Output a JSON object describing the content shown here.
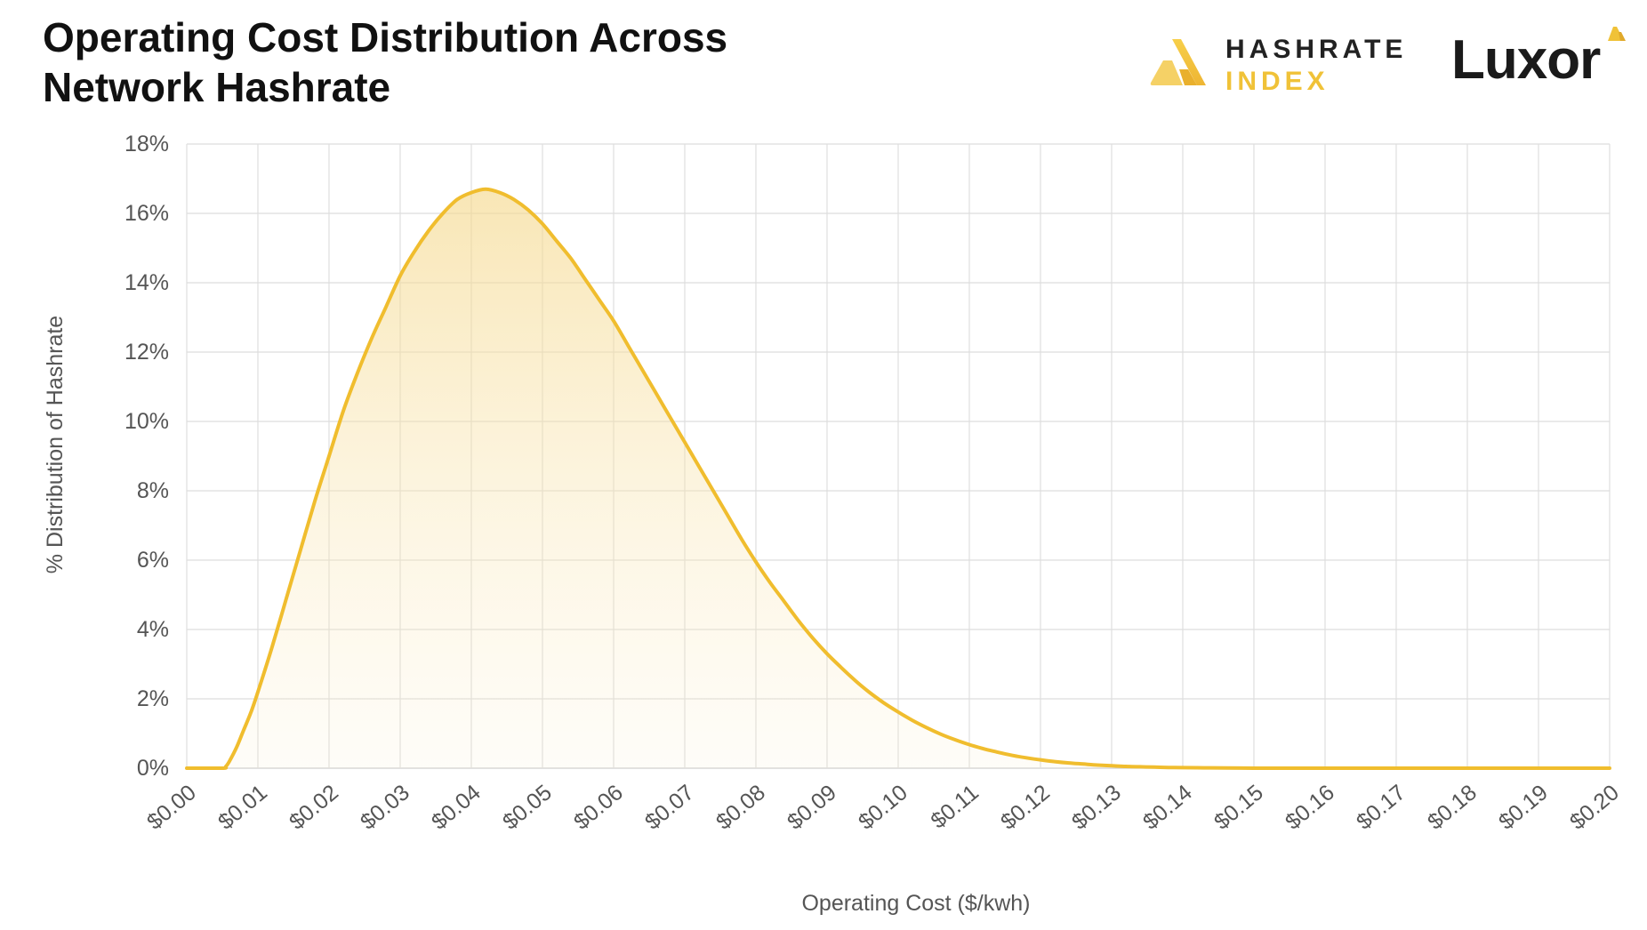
{
  "header": {
    "title_line1": "Operating Cost Distribution Across",
    "title_line2": "Network Hashrate"
  },
  "brands": {
    "hashrate_index_line1": "HASHRATE",
    "hashrate_index_line2": "INDEX",
    "luxor": "Luxor"
  },
  "colors": {
    "line": "#f0bd2e",
    "fill_top": "#f5d98e",
    "grid": "#dedede",
    "brand_gold": "#f0c238"
  },
  "chart_data": {
    "type": "area",
    "title": "Operating Cost Distribution Across Network Hashrate",
    "xlabel": "Operating Cost ($/kwh)",
    "ylabel": "% Distribution of Hashrate",
    "xlim": [
      0,
      0.2
    ],
    "ylim": [
      0,
      18
    ],
    "grid": true,
    "x_ticks": [
      0,
      0.01,
      0.02,
      0.03,
      0.04,
      0.05,
      0.06,
      0.07,
      0.08,
      0.09,
      0.1,
      0.11,
      0.12,
      0.13,
      0.14,
      0.15,
      0.16,
      0.17,
      0.18,
      0.19,
      0.2
    ],
    "x_tick_labels": [
      "$0.00",
      "$0.01",
      "$0.02",
      "$0.03",
      "$0.04",
      "$0.05",
      "$0.06",
      "$0.07",
      "$0.08",
      "$0.09",
      "$0.10",
      "$0.11",
      "$0.12",
      "$0.13",
      "$0.14",
      "$0.15",
      "$0.16",
      "$0.17",
      "$0.18",
      "$0.19",
      "$0.20"
    ],
    "y_ticks": [
      0,
      2,
      4,
      6,
      8,
      10,
      12,
      14,
      16,
      18
    ],
    "y_tick_labels": [
      "0%",
      "2%",
      "4%",
      "6%",
      "8%",
      "10%",
      "12%",
      "14%",
      "16%",
      "18%"
    ],
    "series": [
      {
        "name": "% Distribution of Hashrate",
        "x": [
          0,
          0.005,
          0.0055,
          0.006,
          0.007,
          0.008,
          0.009,
          0.01,
          0.012,
          0.014,
          0.016,
          0.018,
          0.02,
          0.022,
          0.024,
          0.026,
          0.028,
          0.03,
          0.032,
          0.034,
          0.036,
          0.038,
          0.04,
          0.042,
          0.044,
          0.046,
          0.048,
          0.05,
          0.052,
          0.054,
          0.056,
          0.058,
          0.06,
          0.062,
          0.064,
          0.066,
          0.068,
          0.07,
          0.072,
          0.074,
          0.076,
          0.078,
          0.08,
          0.082,
          0.084,
          0.086,
          0.088,
          0.09,
          0.092,
          0.094,
          0.096,
          0.098,
          0.1,
          0.102,
          0.104,
          0.106,
          0.108,
          0.11,
          0.112,
          0.114,
          0.116,
          0.118,
          0.12,
          0.122,
          0.124,
          0.126,
          0.128,
          0.13,
          0.132,
          0.134,
          0.136,
          0.138,
          0.14,
          0.143,
          0.146,
          0.15,
          0.155,
          0.16,
          0.17,
          0.18,
          0.19,
          0.2
        ],
        "values": [
          0,
          0,
          0.05,
          0.2,
          0.6,
          1.1,
          1.6,
          2.2,
          3.5,
          4.9,
          6.3,
          7.7,
          9.0,
          10.3,
          11.4,
          12.4,
          13.3,
          14.2,
          14.9,
          15.5,
          16.0,
          16.4,
          16.6,
          16.7,
          16.6,
          16.4,
          16.1,
          15.7,
          15.2,
          14.7,
          14.1,
          13.5,
          12.9,
          12.2,
          11.5,
          10.8,
          10.1,
          9.4,
          8.7,
          8.0,
          7.3,
          6.6,
          5.95,
          5.35,
          4.8,
          4.25,
          3.75,
          3.3,
          2.9,
          2.52,
          2.18,
          1.88,
          1.62,
          1.38,
          1.17,
          0.98,
          0.82,
          0.68,
          0.56,
          0.46,
          0.37,
          0.3,
          0.24,
          0.19,
          0.15,
          0.12,
          0.09,
          0.07,
          0.05,
          0.04,
          0.03,
          0.02,
          0.015,
          0.01,
          0.005,
          0.0,
          0,
          0,
          0,
          0,
          0,
          0
        ]
      }
    ]
  }
}
